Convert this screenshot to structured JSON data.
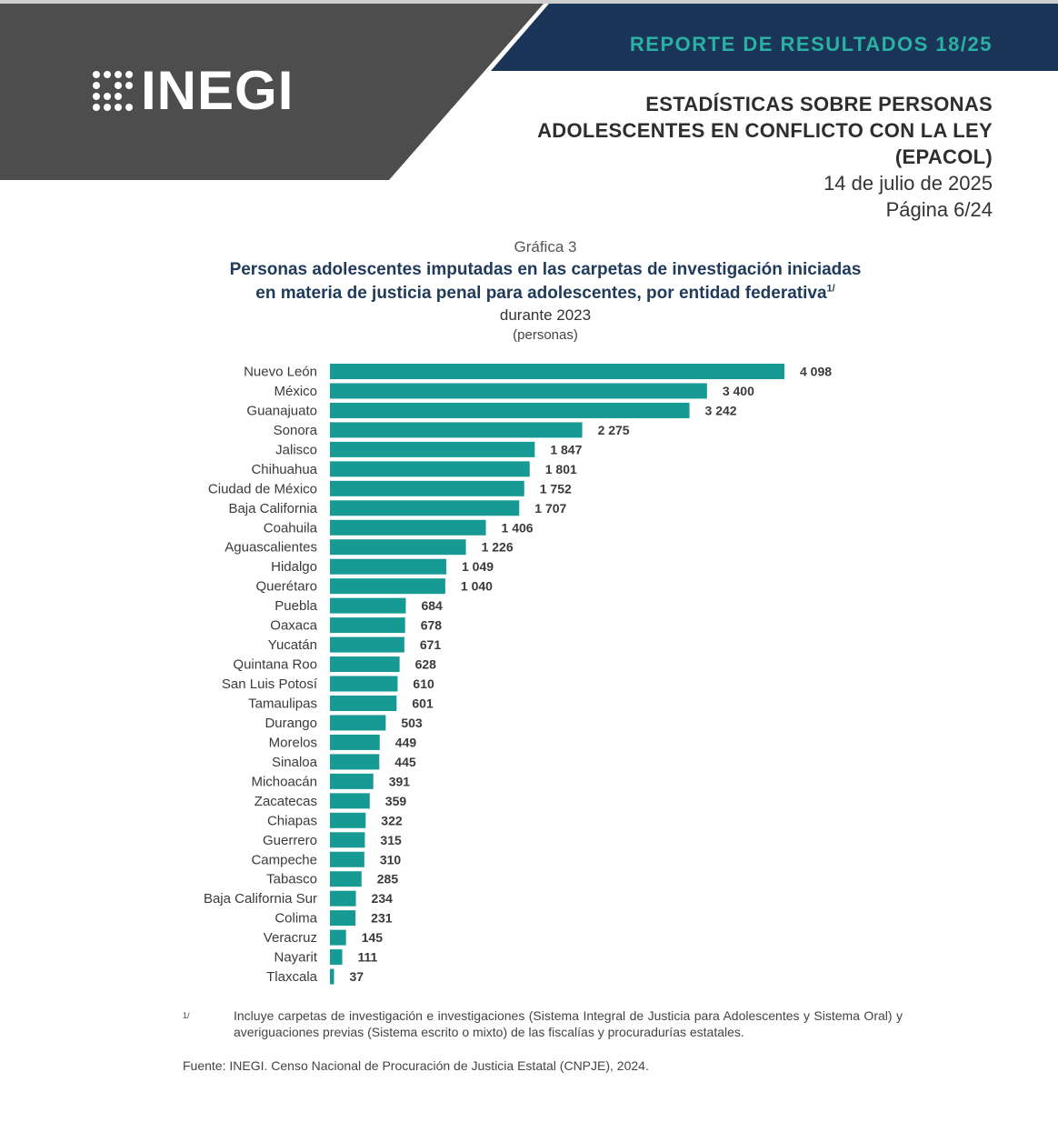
{
  "header": {
    "logo_text": "INEGI",
    "report_banner": "REPORTE DE RESULTADOS 18/25",
    "report_title": "ESTADÍSTICAS SOBRE PERSONAS\nADOLESCENTES EN CONFLICTO CON LA LEY\n(EPACOL)",
    "date": "14 de julio de 2025",
    "page": "Página 6/24",
    "colors": {
      "gray": "#4d4d4d",
      "navy": "#1b3558",
      "teal": "#2ab0a4",
      "bar": "#179a93"
    }
  },
  "chart_data": {
    "type": "bar",
    "orientation": "horizontal",
    "label": "Gráfica 3",
    "title_line1": "Personas adolescentes imputadas en las carpetas de investigación iniciadas",
    "title_line2": "en materia de justicia penal para adolescentes, por entidad federativa",
    "title_sup": "1/",
    "period": "durante 2023",
    "unit": "(personas)",
    "xlim": [
      0,
      4098
    ],
    "categories": [
      "Nuevo León",
      "México",
      "Guanajuato",
      "Sonora",
      "Jalisco",
      "Chihuahua",
      "Ciudad de México",
      "Baja California",
      "Coahuila",
      "Aguascalientes",
      "Hidalgo",
      "Querétaro",
      "Puebla",
      "Oaxaca",
      "Yucatán",
      "Quintana Roo",
      "San Luis Potosí",
      "Tamaulipas",
      "Durango",
      "Morelos",
      "Sinaloa",
      "Michoacán",
      "Zacatecas",
      "Chiapas",
      "Guerrero",
      "Campeche",
      "Tabasco",
      "Baja California Sur",
      "Colima",
      "Veracruz",
      "Nayarit",
      "Tlaxcala"
    ],
    "values": [
      4098,
      3400,
      3242,
      2275,
      1847,
      1801,
      1752,
      1707,
      1406,
      1226,
      1049,
      1040,
      684,
      678,
      671,
      628,
      610,
      601,
      503,
      449,
      445,
      391,
      359,
      322,
      315,
      310,
      285,
      234,
      231,
      145,
      111,
      37
    ],
    "value_labels": [
      "4 098",
      "3 400",
      "3 242",
      "2 275",
      "1 847",
      "1 801",
      "1 752",
      "1 707",
      "1 406",
      "1 226",
      "1 049",
      "1 040",
      "684",
      "678",
      "671",
      "628",
      "610",
      "601",
      "503",
      "449",
      "445",
      "391",
      "359",
      "322",
      "315",
      "310",
      "285",
      "234",
      "231",
      "145",
      "111",
      "37"
    ]
  },
  "footnote": {
    "mark": "1/",
    "text": "Incluye carpetas de investigación e investigaciones (Sistema Integral de Justicia para Adolescentes y Sistema Oral) y averiguaciones previas (Sistema escrito o mixto) de las fiscalías y procuradurías estatales."
  },
  "source": {
    "prefix": "Fuente:",
    "org": "INEGI",
    "text": ". Censo Nacional de Procuración de Justicia Estatal (",
    "abbr": "CNPJE",
    "suffix": "), 2024."
  }
}
